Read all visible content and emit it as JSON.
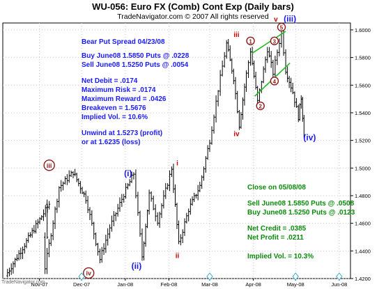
{
  "header": {
    "title": "WU-056:  Euro FX (Comb) Cont Exp  (Daily bars)",
    "subtitle": "TradeNavigator.com © 2007 All rights reserved"
  },
  "watermark": "TradeNavigator.com",
  "notes_blue": [
    "Bear Put Spread 04/23/08",
    "Buy June08 1.5850 Puts @ .0228",
    "Sell June08 1.5250 Puts @ .0054",
    "Net Debit = .0174",
    "Maximum Risk =  .0174",
    "Maximum Reward = .0426",
    "Breakeven = 1.5676",
    "Implied Vol. = 10.6%",
    "Unwind at 1.5273 (profit)",
    "or at 1.6235 (loss)"
  ],
  "notes_green": [
    "Close on 05/08/08",
    "Sell June08 1.5850 Puts @ .0508",
    "Buy June08 1.5250 Puts @ .0123",
    "Net Credit = .0385",
    "Net Profit = .0211",
    "Implied Vol. = 10.3%"
  ],
  "colors": {
    "blue": "#1a1aff",
    "green": "#0a8a0a",
    "red": "#cc0000",
    "brown": "#8b1a1a",
    "bars": "#000000",
    "channel": "#22bb22"
  },
  "chart_data": {
    "type": "ohlc",
    "ylim": [
      1.42,
      1.605
    ],
    "y_ticks": [
      "1.6000",
      "1.5800",
      "1.5600",
      "1.5400",
      "1.5200",
      "1.5000",
      "1.4800",
      "1.4600",
      "1.4400",
      "1.4200"
    ],
    "x_ticks": [
      "Nov-07",
      "Dec-07",
      "Jan-08",
      "Feb-08",
      "Mar-08",
      "Apr-08",
      "May-08",
      "Jun-08"
    ],
    "x_tick_day": [
      0,
      30,
      61,
      92,
      121,
      152,
      182,
      213
    ],
    "pivots": [
      {
        "day": -24,
        "price": 1.422
      },
      {
        "day": 7,
        "price": 1.474
      },
      {
        "day": 4,
        "price": 1.428
      },
      {
        "day": 14,
        "price": 1.486
      },
      {
        "day": 24,
        "price": 1.497
      },
      {
        "day": 33,
        "price": 1.478
      },
      {
        "day": 43,
        "price": 1.434
      },
      {
        "day": 50,
        "price": 1.457
      },
      {
        "day": 60,
        "price": 1.481
      },
      {
        "day": 67,
        "price": 1.496
      },
      {
        "day": 73,
        "price": 1.436
      },
      {
        "day": 78,
        "price": 1.481
      },
      {
        "day": 84,
        "price": 1.462
      },
      {
        "day": 94,
        "price": 1.5
      },
      {
        "day": 99,
        "price": 1.445
      },
      {
        "day": 106,
        "price": 1.47
      },
      {
        "day": 114,
        "price": 1.487
      },
      {
        "day": 121,
        "price": 1.52
      },
      {
        "day": 127,
        "price": 1.557
      },
      {
        "day": 133,
        "price": 1.59
      },
      {
        "day": 138,
        "price": 1.565
      },
      {
        "day": 142,
        "price": 1.531
      },
      {
        "day": 147,
        "price": 1.568
      },
      {
        "day": 150,
        "price": 1.585
      },
      {
        "day": 155,
        "price": 1.548
      },
      {
        "day": 162,
        "price": 1.586
      },
      {
        "day": 166,
        "price": 1.569
      },
      {
        "day": 172,
        "price": 1.599
      },
      {
        "day": 175,
        "price": 1.571
      },
      {
        "day": 180,
        "price": 1.555
      },
      {
        "day": 184,
        "price": 1.537
      },
      {
        "day": 186,
        "price": 1.551
      },
      {
        "day": 188,
        "price": 1.524
      }
    ],
    "wave_labels": [
      {
        "text": "iii",
        "day": 7,
        "price": 1.502,
        "style": "circle",
        "color": "#8b1a1a"
      },
      {
        "text": "iv",
        "day": 35,
        "price": 1.424,
        "style": "circle",
        "color": "#8b1a1a"
      },
      {
        "text": "(i)",
        "day": 63,
        "price": 1.496,
        "style": "plain",
        "color": "#1a1aff"
      },
      {
        "text": "(ii)",
        "day": 69,
        "price": 1.429,
        "style": "plain",
        "color": "#1a1aff"
      },
      {
        "text": "i",
        "day": 98,
        "price": 1.504,
        "style": "plain",
        "color": "#cc0000"
      },
      {
        "text": "ii",
        "day": 98,
        "price": 1.437,
        "style": "plain",
        "color": "#cc0000"
      },
      {
        "text": "iii",
        "day": 140,
        "price": 1.597,
        "style": "plain",
        "color": "#cc0000"
      },
      {
        "text": "iv",
        "day": 140,
        "price": 1.525,
        "style": "plain",
        "color": "#cc0000"
      },
      {
        "text": "1",
        "day": 150,
        "price": 1.592,
        "style": "circle",
        "color": "#8b1a1a"
      },
      {
        "text": "2",
        "day": 157,
        "price": 1.545,
        "style": "circle",
        "color": "#8b1a1a"
      },
      {
        "text": "3",
        "day": 167,
        "price": 1.592,
        "style": "circle",
        "color": "#8b1a1a"
      },
      {
        "text": "4",
        "day": 167,
        "price": 1.563,
        "style": "circle",
        "color": "#8b1a1a"
      },
      {
        "text": "5",
        "day": 172,
        "price": 1.602,
        "style": "circle",
        "color": "#8b1a1a"
      },
      {
        "text": "v",
        "day": 168,
        "price": 1.608,
        "style": "plain",
        "color": "#cc0000"
      },
      {
        "text": "(iii)",
        "day": 178,
        "price": 1.608,
        "style": "plain",
        "color": "#1a1aff"
      },
      {
        "text": "(iv)",
        "day": 192,
        "price": 1.522,
        "style": "plain",
        "color": "#1a1aff"
      }
    ],
    "channel_lines": [
      {
        "from": {
          "day": 151,
          "price": 1.583
        },
        "to": {
          "day": 175,
          "price": 1.599
        }
      },
      {
        "from": {
          "day": 153,
          "price": 1.552
        },
        "to": {
          "day": 178,
          "price": 1.576
        }
      }
    ]
  }
}
